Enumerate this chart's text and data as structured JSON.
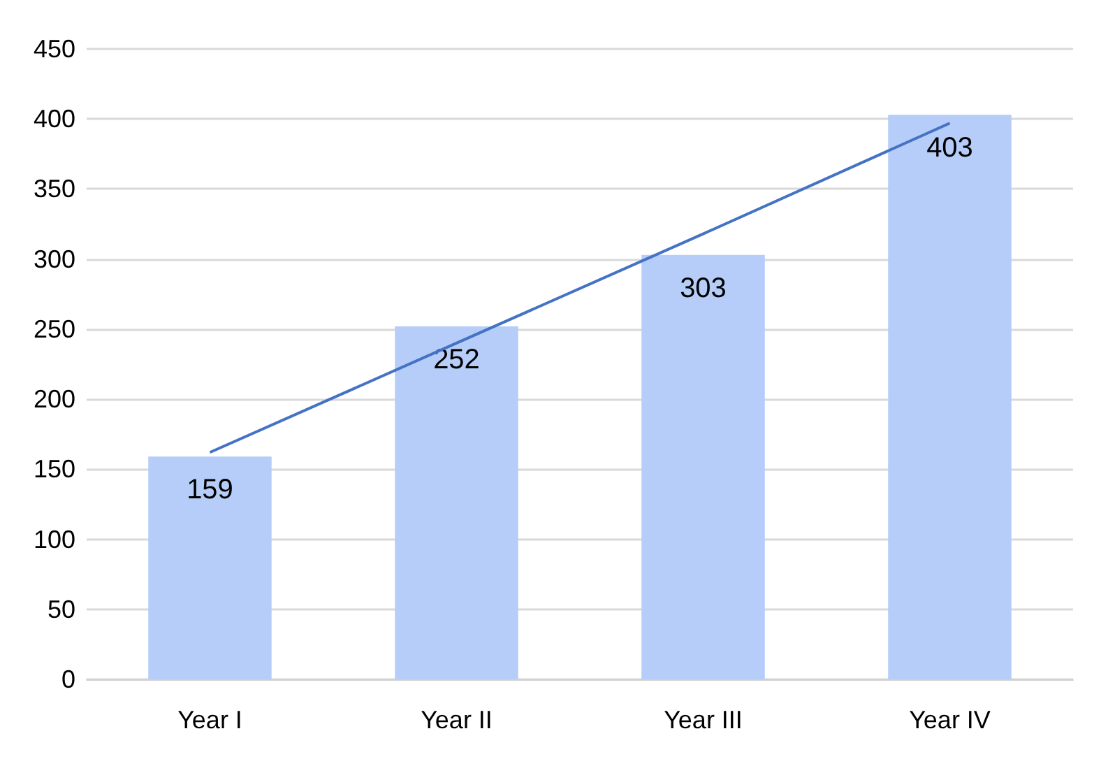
{
  "chart_data": {
    "type": "bar",
    "categories": [
      "Year I",
      "Year II",
      "Year III",
      "Year IV"
    ],
    "series": [
      {
        "color": "#b5cdf8",
        "values": [
          159,
          252,
          303,
          403
        ],
        "data_labels": true
      },
      {
        "type": "line",
        "color": "#4472c4",
        "values": [
          162,
          240,
          318,
          397
        ],
        "marker": "none"
      }
    ],
    "ylim": [
      0,
      450
    ],
    "yticks": [
      0,
      50,
      100,
      150,
      200,
      250,
      300,
      350,
      400,
      450
    ],
    "grid": "y"
  }
}
